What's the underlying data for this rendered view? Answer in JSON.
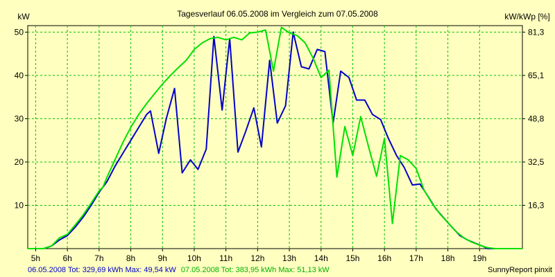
{
  "chart_data": {
    "type": "line",
    "title": "Tagesverlauf 06.05.2008 im Vergleich zum 07.05.2008",
    "ylabel_left": "kW",
    "ylabel_right": "kW/kWp [%]",
    "xlim": [
      4.75,
      20.35
    ],
    "ylim": [
      0,
      51.5
    ],
    "x_ticks": [
      {
        "v": 5,
        "label": "5h"
      },
      {
        "v": 6,
        "label": "6h"
      },
      {
        "v": 7,
        "label": "7h"
      },
      {
        "v": 8,
        "label": "8h"
      },
      {
        "v": 9,
        "label": "9h"
      },
      {
        "v": 10,
        "label": "10h"
      },
      {
        "v": 11,
        "label": "11h"
      },
      {
        "v": 12,
        "label": "12h"
      },
      {
        "v": 13,
        "label": "13h"
      },
      {
        "v": 14,
        "label": "14h"
      },
      {
        "v": 15,
        "label": "15h"
      },
      {
        "v": 16,
        "label": "16h"
      },
      {
        "v": 17,
        "label": "17h"
      },
      {
        "v": 18,
        "label": "18h"
      },
      {
        "v": 19,
        "label": "19h"
      }
    ],
    "y_left_ticks": [
      10,
      20,
      30,
      40,
      50
    ],
    "y_right_ticks": [
      {
        "v": 10,
        "label": "16,3"
      },
      {
        "v": 20,
        "label": "32,5"
      },
      {
        "v": 30,
        "label": "48,8"
      },
      {
        "v": 40,
        "label": "65,1"
      },
      {
        "v": 50,
        "label": "81,3"
      }
    ],
    "grid": true,
    "series": [
      {
        "name": "06.05.2008",
        "color": "#0000c8",
        "points": [
          [
            4.75,
            0
          ],
          [
            5.25,
            0
          ],
          [
            5.5,
            0.6
          ],
          [
            5.75,
            2
          ],
          [
            6,
            3
          ],
          [
            6.25,
            5
          ],
          [
            6.5,
            7.3
          ],
          [
            6.75,
            10
          ],
          [
            7,
            13
          ],
          [
            7.25,
            15.5
          ],
          [
            7.5,
            19
          ],
          [
            7.75,
            22
          ],
          [
            8,
            25
          ],
          [
            8.25,
            28
          ],
          [
            8.5,
            31
          ],
          [
            8.62,
            31.8
          ],
          [
            8.88,
            22
          ],
          [
            9.12,
            30
          ],
          [
            9.38,
            37
          ],
          [
            9.62,
            17.5
          ],
          [
            9.88,
            20.5
          ],
          [
            10.12,
            18.3
          ],
          [
            10.38,
            23
          ],
          [
            10.62,
            49
          ],
          [
            10.88,
            32
          ],
          [
            11.12,
            48.5
          ],
          [
            11.38,
            22.3
          ],
          [
            11.62,
            27
          ],
          [
            11.88,
            32.5
          ],
          [
            12.12,
            23.5
          ],
          [
            12.38,
            43.5
          ],
          [
            12.62,
            29
          ],
          [
            12.88,
            33
          ],
          [
            13.12,
            50
          ],
          [
            13.38,
            42
          ],
          [
            13.62,
            41.5
          ],
          [
            13.88,
            46
          ],
          [
            14.12,
            45.5
          ],
          [
            14.38,
            29
          ],
          [
            14.62,
            41
          ],
          [
            14.88,
            39.5
          ],
          [
            15.12,
            34.3
          ],
          [
            15.38,
            34.3
          ],
          [
            15.62,
            31
          ],
          [
            15.88,
            29.8
          ],
          [
            16.12,
            25.5
          ],
          [
            16.38,
            21.5
          ],
          [
            16.62,
            18.8
          ],
          [
            16.88,
            14.7
          ],
          [
            17.12,
            14.9
          ],
          [
            17.38,
            12
          ],
          [
            17.62,
            9.2
          ],
          [
            17.88,
            7
          ],
          [
            18.12,
            5
          ],
          [
            18.38,
            3
          ],
          [
            18.62,
            2
          ],
          [
            18.88,
            1.2
          ],
          [
            19.12,
            0.5
          ],
          [
            19.25,
            0
          ],
          [
            20.35,
            0
          ]
        ]
      },
      {
        "name": "07.05.2008",
        "color": "#00e000",
        "points": [
          [
            4.75,
            0
          ],
          [
            5.25,
            0
          ],
          [
            5.5,
            0.6
          ],
          [
            5.75,
            2.5
          ],
          [
            6,
            3.3
          ],
          [
            6.25,
            5.5
          ],
          [
            6.5,
            7.8
          ],
          [
            6.75,
            10.5
          ],
          [
            7,
            13.3
          ],
          [
            7.12,
            14.2
          ],
          [
            7.25,
            16.5
          ],
          [
            7.5,
            20.5
          ],
          [
            7.75,
            24.5
          ],
          [
            8,
            28
          ],
          [
            8.25,
            31
          ],
          [
            8.5,
            33.5
          ],
          [
            8.75,
            35.8
          ],
          [
            9,
            38
          ],
          [
            9.25,
            40
          ],
          [
            9.5,
            41.8
          ],
          [
            9.75,
            43.5
          ],
          [
            10,
            46
          ],
          [
            10.25,
            47.5
          ],
          [
            10.5,
            48.5
          ],
          [
            10.75,
            48.8
          ],
          [
            11,
            48.2
          ],
          [
            11.25,
            48.8
          ],
          [
            11.5,
            48.2
          ],
          [
            11.75,
            49.8
          ],
          [
            12,
            50
          ],
          [
            12.25,
            50.5
          ],
          [
            12.5,
            41
          ],
          [
            12.75,
            51.1
          ],
          [
            13,
            49.8
          ],
          [
            13.25,
            49.2
          ],
          [
            13.5,
            47.5
          ],
          [
            13.75,
            44
          ],
          [
            14,
            39.5
          ],
          [
            14.25,
            41.2
          ],
          [
            14.5,
            16.5
          ],
          [
            14.75,
            28.2
          ],
          [
            15,
            21.5
          ],
          [
            15.25,
            30.5
          ],
          [
            15.5,
            23.5
          ],
          [
            15.75,
            16.7
          ],
          [
            16,
            25.5
          ],
          [
            16.25,
            5.8
          ],
          [
            16.5,
            21.5
          ],
          [
            16.75,
            20.5
          ],
          [
            17,
            18.5
          ],
          [
            17.25,
            13.5
          ],
          [
            17.5,
            10.5
          ],
          [
            17.75,
            8
          ],
          [
            18,
            6
          ],
          [
            18.25,
            4
          ],
          [
            18.5,
            2.5
          ],
          [
            18.75,
            1.5
          ],
          [
            19,
            0.8
          ],
          [
            19.25,
            0.2
          ],
          [
            19.5,
            0
          ],
          [
            20.35,
            0
          ]
        ]
      }
    ],
    "footer": {
      "series1_text": "06.05.2008 Tot: 329,69 kWh Max: 49,54 kW",
      "series2_text": "07.05.2008 Tot: 383,95 kWh Max: 51,13 kW",
      "credit": "SunnyReport pinxit"
    }
  }
}
